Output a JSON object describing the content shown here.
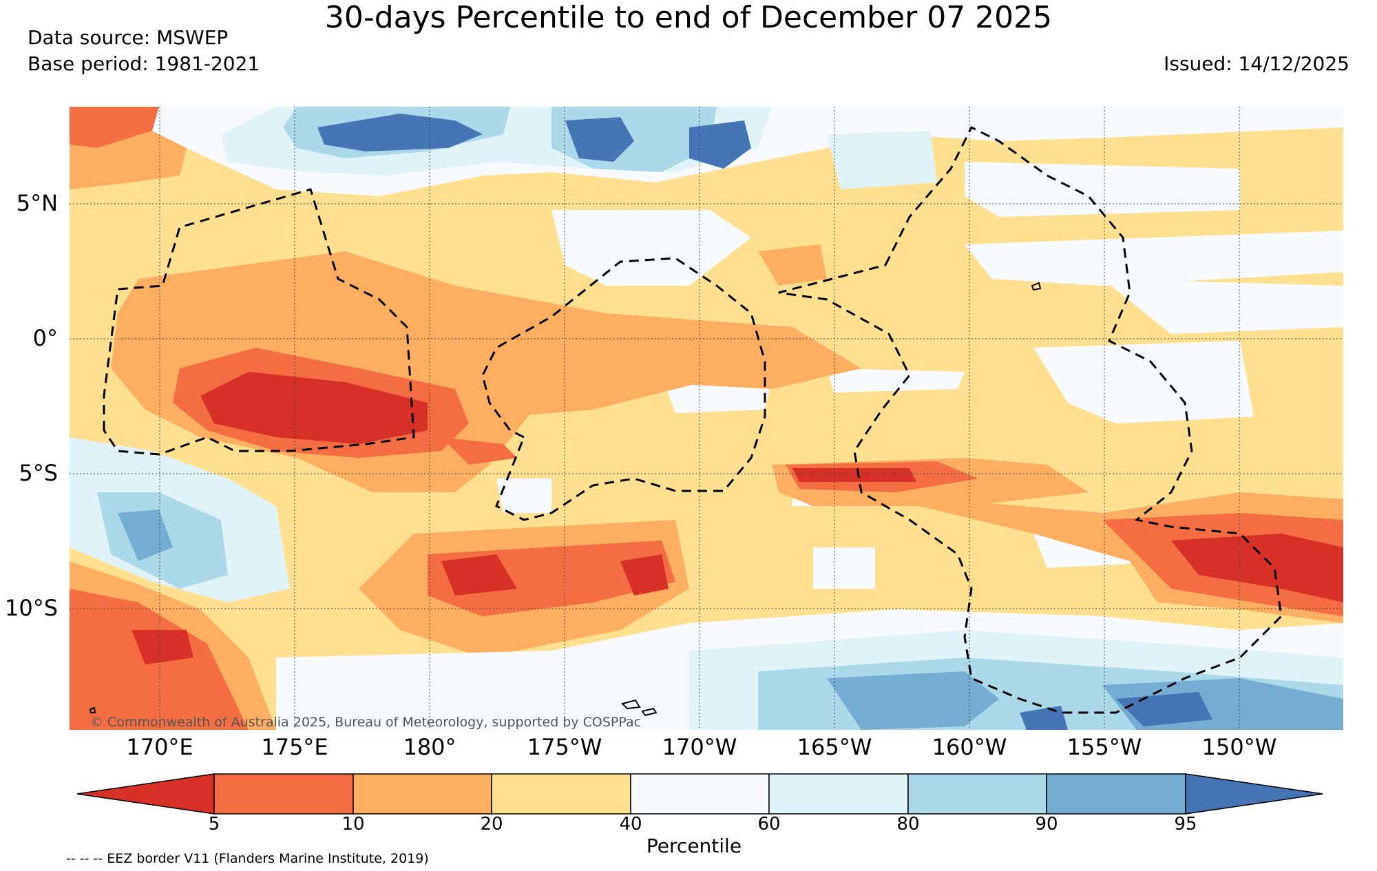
{
  "title": "30-days Percentile to end of December 07 2025",
  "data_source": "Data source: MSWEP",
  "base_period": "Base period: 1981-2021",
  "issued": "Issued: 14/12/2025",
  "lat_labels": [
    "5°N",
    "0°",
    "5°S",
    "10°S"
  ],
  "lon_labels": [
    "170°E",
    "175°E",
    "180°",
    "175°W",
    "170°W",
    "165°W",
    "160°W",
    "155°W",
    "150°W"
  ],
  "copyright": "© Commonwealth of Australia 2025, Bureau of Meteorology, supported by COSPPac",
  "colorbar": {
    "label": "Percentile",
    "ticks": [
      "5",
      "10",
      "20",
      "40",
      "60",
      "80",
      "90",
      "95"
    ],
    "colors": [
      "#d73027",
      "#f46d43",
      "#fdae61",
      "#fee090",
      "#f7fbff",
      "#e0f3f8",
      "#abd9e9",
      "#74add1",
      "#4575b4"
    ]
  },
  "legend_note": "-- -- -- EEZ border V11 (Flanders Marine Institute, 2019)"
}
